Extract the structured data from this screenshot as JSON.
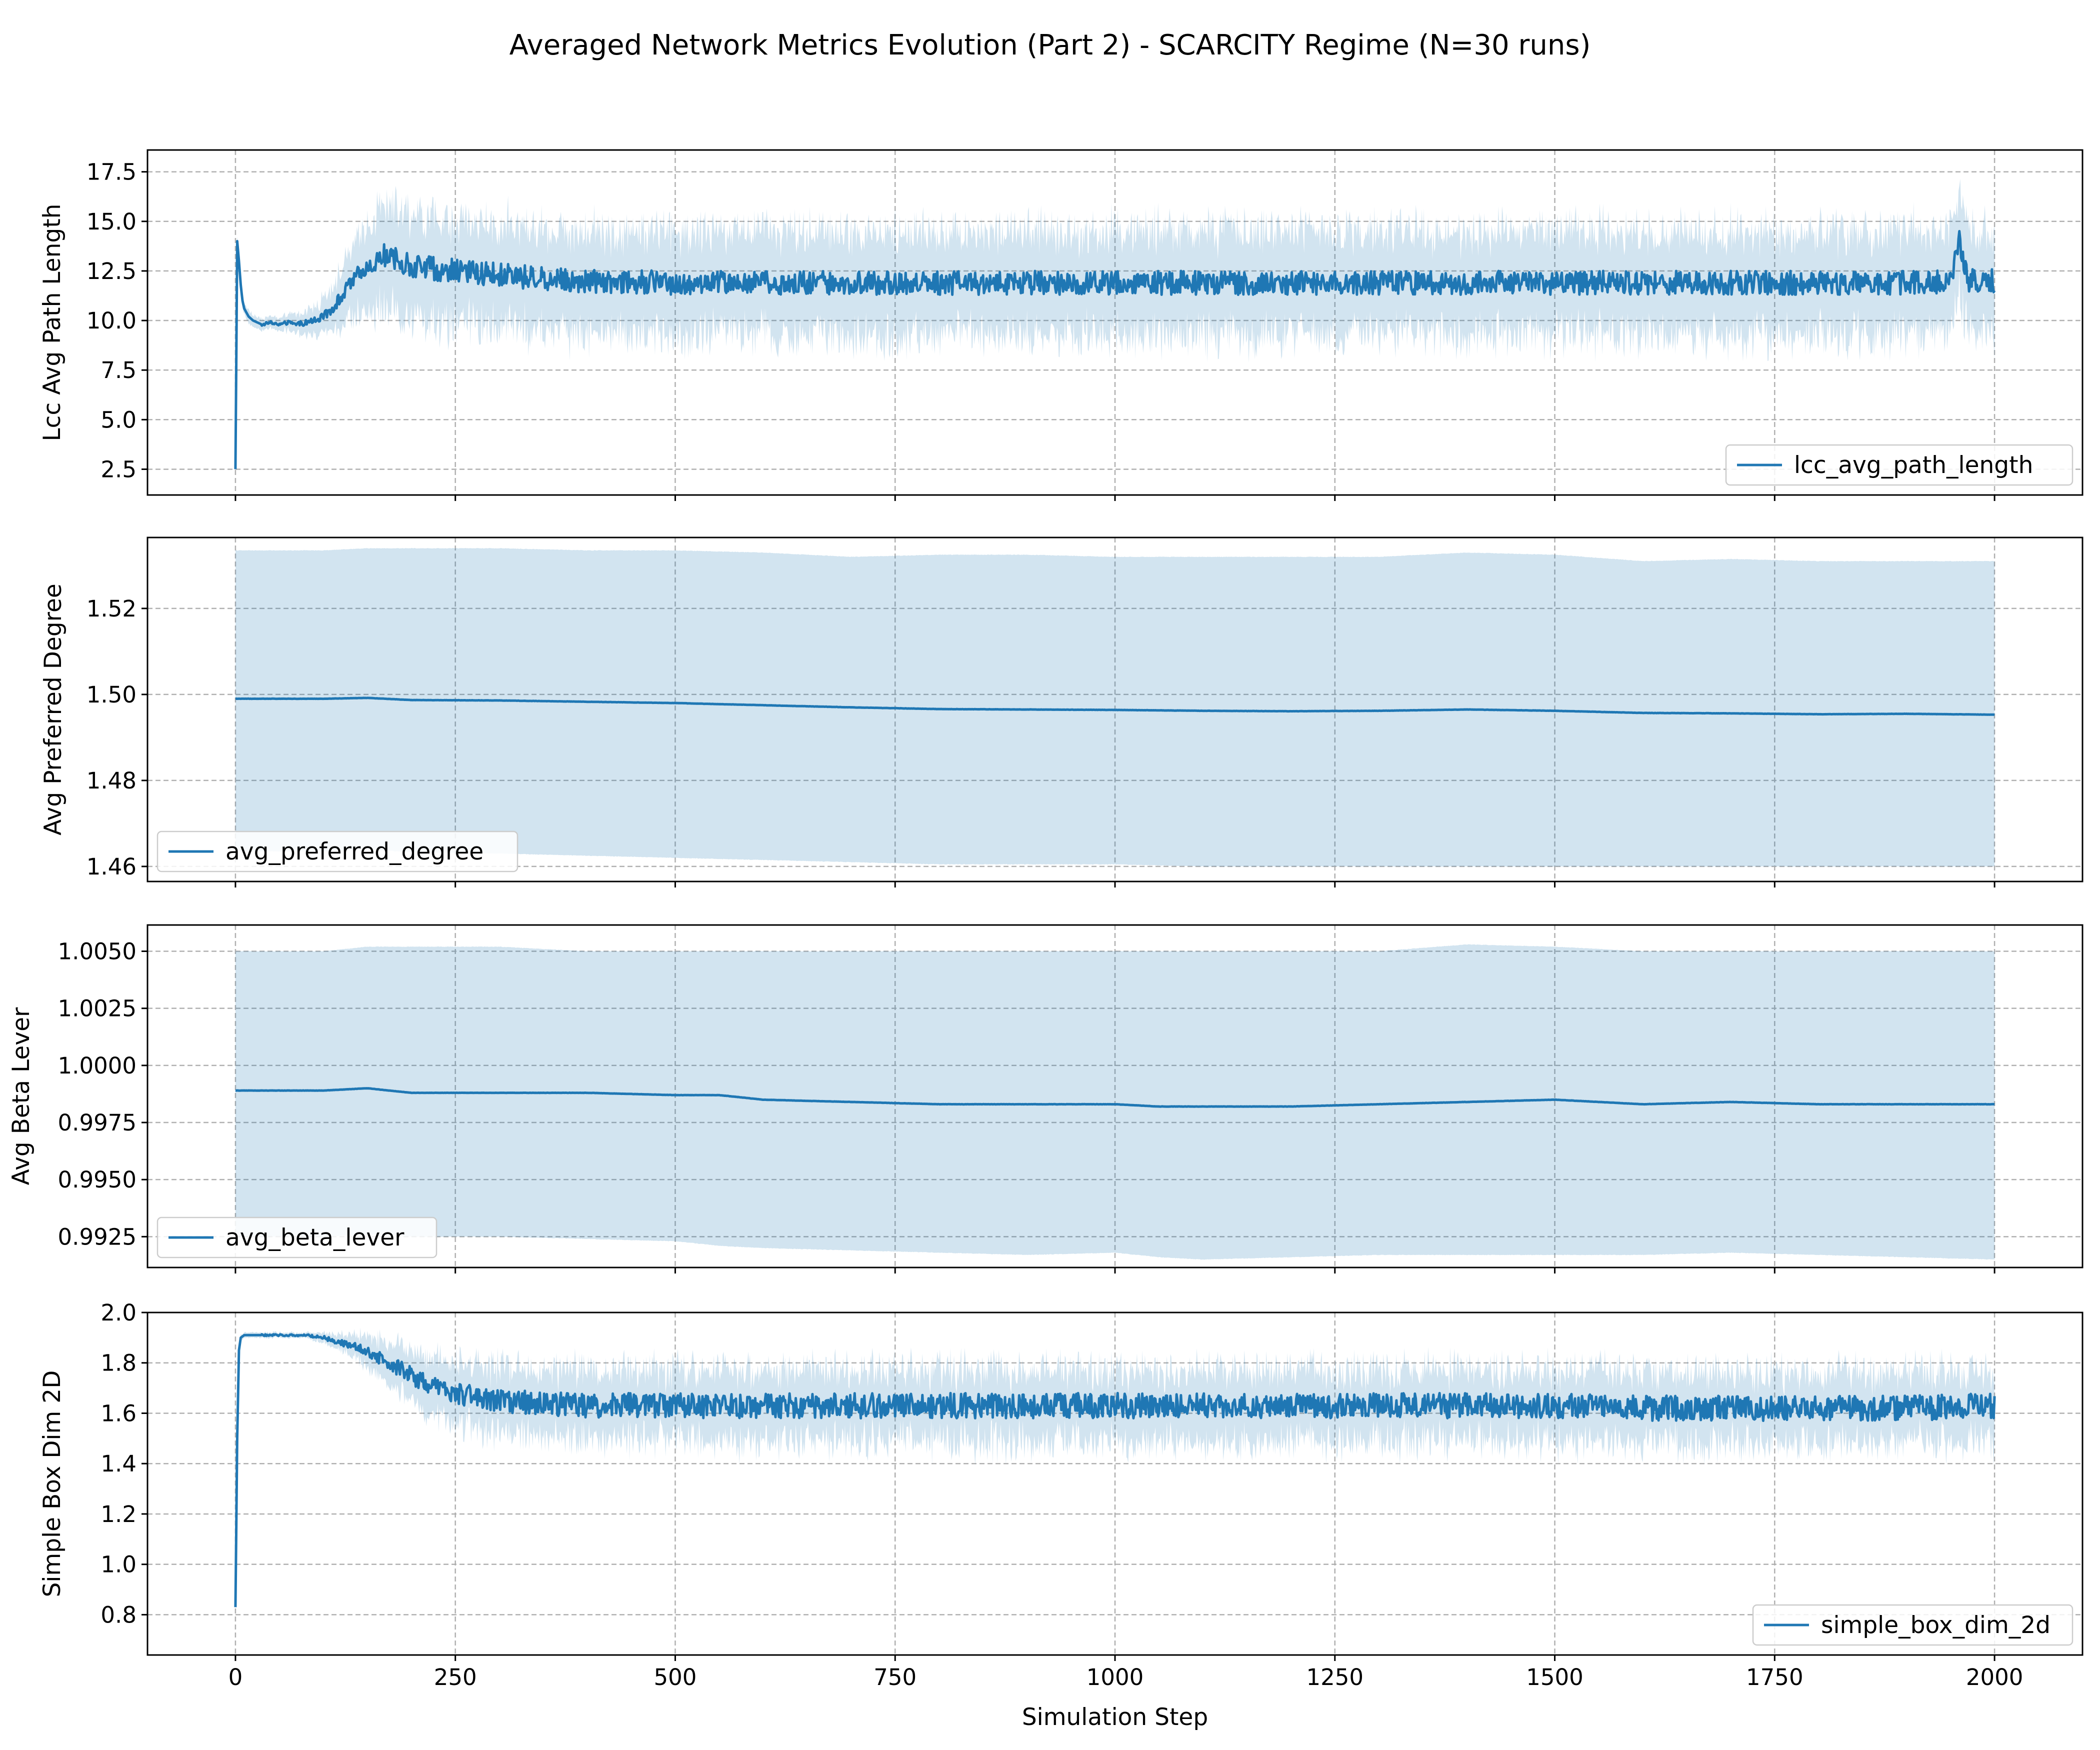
{
  "figure": {
    "title": "Averaged Network Metrics Evolution (Part 2) - SCARCITY Regime (N=30 runs)",
    "xlabel": "Simulation Step"
  },
  "colors": {
    "line": "#1f77b4",
    "band": "#1f77b4",
    "grid": "#b0b0b0"
  },
  "chart_data": [
    {
      "type": "line",
      "ylabel": "Lcc Avg Path Length",
      "legend": {
        "label": "lcc_avg_path_length",
        "location": "lower-right"
      },
      "xlim": [
        -100,
        2100
      ],
      "ylim": [
        1.2,
        18.6
      ],
      "xticks": [
        0,
        250,
        500,
        750,
        1000,
        1250,
        1500,
        1750,
        2000
      ],
      "yticks": [
        2.5,
        5.0,
        7.5,
        10.0,
        12.5,
        15.0,
        17.5
      ],
      "grid": true,
      "band": "mean ± std across runs",
      "series_x": [
        0,
        2,
        4,
        6,
        8,
        10,
        15,
        20,
        30,
        40,
        50,
        60,
        70,
        80,
        90,
        100,
        110,
        120,
        130,
        140,
        150,
        160,
        170,
        180,
        190,
        200,
        225,
        250,
        275,
        300,
        350,
        400,
        500,
        600,
        700,
        800,
        900,
        1000,
        1100,
        1200,
        1300,
        1400,
        1500,
        1600,
        1700,
        1800,
        1900,
        1950,
        1960,
        1970,
        2000
      ],
      "series_y": [
        2.5,
        14.0,
        13.0,
        11.8,
        11.0,
        10.6,
        10.2,
        10.0,
        9.8,
        9.9,
        9.8,
        9.9,
        9.8,
        9.9,
        10.0,
        10.2,
        10.6,
        11.2,
        11.8,
        12.3,
        12.7,
        13.0,
        13.3,
        13.1,
        12.9,
        12.8,
        12.6,
        12.5,
        12.4,
        12.3,
        12.1,
        12.0,
        11.9,
        11.9,
        11.9,
        11.9,
        11.9,
        11.9,
        11.9,
        11.9,
        11.9,
        11.9,
        11.9,
        11.9,
        11.9,
        11.9,
        11.9,
        12.0,
        14.1,
        12.0,
        12.0
      ],
      "band_half_width": [
        0,
        0.3,
        0.3,
        0.3,
        0.3,
        0.3,
        0.3,
        0.3,
        0.3,
        0.3,
        0.3,
        0.4,
        0.5,
        0.6,
        0.7,
        0.9,
        1.1,
        1.4,
        1.7,
        2.0,
        2.2,
        2.4,
        2.5,
        2.6,
        2.6,
        2.6,
        2.6,
        2.6,
        2.6,
        2.6,
        2.6,
        2.6,
        2.6,
        2.6,
        2.6,
        2.6,
        2.6,
        2.6,
        2.6,
        2.6,
        2.6,
        2.6,
        2.6,
        2.6,
        2.6,
        2.6,
        2.6,
        2.6,
        2.6,
        2.6,
        2.6
      ],
      "noise": 0.6
    },
    {
      "type": "line",
      "ylabel": "Avg Preferred Degree",
      "legend": {
        "label": "avg_preferred_degree",
        "location": "lower-left"
      },
      "xlim": [
        -100,
        2100
      ],
      "ylim": [
        1.4565,
        1.5365
      ],
      "xticks": [
        0,
        250,
        500,
        750,
        1000,
        1250,
        1500,
        1750,
        2000
      ],
      "yticks": [
        1.46,
        1.48,
        1.5,
        1.52
      ],
      "grid": true,
      "band": "mean ± std across runs",
      "series_x": [
        0,
        100,
        150,
        200,
        300,
        400,
        500,
        600,
        700,
        800,
        900,
        1000,
        1100,
        1200,
        1300,
        1400,
        1500,
        1600,
        1700,
        1800,
        1900,
        2000
      ],
      "series_y": [
        1.499,
        1.499,
        1.4992,
        1.4987,
        1.4986,
        1.4983,
        1.498,
        1.4975,
        1.497,
        1.4966,
        1.4965,
        1.4964,
        1.4962,
        1.4961,
        1.4962,
        1.4965,
        1.4962,
        1.4957,
        1.4956,
        1.4954,
        1.4955,
        1.4953
      ],
      "band_upper": [
        1.5335,
        1.5335,
        1.534,
        1.534,
        1.534,
        1.5335,
        1.5335,
        1.533,
        1.532,
        1.5325,
        1.5325,
        1.532,
        1.532,
        1.532,
        1.532,
        1.533,
        1.5325,
        1.531,
        1.5315,
        1.531,
        1.531,
        1.531
      ],
      "band_lower": [
        1.4635,
        1.4635,
        1.464,
        1.4633,
        1.463,
        1.4625,
        1.462,
        1.4615,
        1.461,
        1.4605,
        1.4605,
        1.4605,
        1.46,
        1.46,
        1.46,
        1.46,
        1.46,
        1.46,
        1.46,
        1.46,
        1.46,
        1.46
      ]
    },
    {
      "type": "line",
      "ylabel": "Avg Beta Lever",
      "legend": {
        "label": "avg_beta_lever",
        "location": "lower-left"
      },
      "xlim": [
        -100,
        2100
      ],
      "ylim": [
        0.99115,
        1.00615
      ],
      "xticks": [
        0,
        250,
        500,
        750,
        1000,
        1250,
        1500,
        1750,
        2000
      ],
      "yticks": [
        0.9925,
        0.995,
        0.9975,
        1.0,
        1.0025,
        1.005
      ],
      "grid": true,
      "band": "mean ± std across runs",
      "series_x": [
        0,
        100,
        150,
        200,
        300,
        400,
        500,
        550,
        600,
        700,
        800,
        900,
        1000,
        1050,
        1100,
        1200,
        1300,
        1400,
        1500,
        1600,
        1700,
        1800,
        1900,
        2000
      ],
      "series_y": [
        0.9989,
        0.9989,
        0.999,
        0.9988,
        0.9988,
        0.9988,
        0.9987,
        0.9987,
        0.9985,
        0.9984,
        0.9983,
        0.9983,
        0.9983,
        0.9982,
        0.9982,
        0.9982,
        0.9983,
        0.9984,
        0.9985,
        0.9983,
        0.9984,
        0.9983,
        0.9983,
        0.9983
      ],
      "band_upper": [
        1.005,
        1.005,
        1.0052,
        1.0052,
        1.0052,
        1.005,
        1.005,
        1.005,
        1.005,
        1.005,
        1.005,
        1.005,
        1.005,
        1.005,
        1.005,
        1.005,
        1.005,
        1.0053,
        1.0052,
        1.005,
        1.005,
        1.005,
        1.005,
        1.005
      ],
      "band_lower": [
        0.9925,
        0.9925,
        0.9926,
        0.9925,
        0.9925,
        0.9924,
        0.9923,
        0.9921,
        0.992,
        0.9919,
        0.9918,
        0.9917,
        0.9918,
        0.9916,
        0.9915,
        0.9916,
        0.9917,
        0.9917,
        0.9917,
        0.9917,
        0.9918,
        0.9917,
        0.9916,
        0.9915
      ]
    },
    {
      "type": "line",
      "ylabel": "Simple Box Dim 2D",
      "legend": {
        "label": "simple_box_dim_2d",
        "location": "lower-right"
      },
      "xlim": [
        -100,
        2100
      ],
      "ylim": [
        0.64,
        2.0
      ],
      "xticks": [
        0,
        250,
        500,
        750,
        1000,
        1250,
        1500,
        1750,
        2000
      ],
      "yticks": [
        0.8,
        1.0,
        1.2,
        1.4,
        1.6,
        1.8,
        2.0
      ],
      "grid": true,
      "band": "mean ± std across runs",
      "series_x": [
        0,
        2,
        4,
        6,
        10,
        20,
        50,
        80,
        100,
        120,
        140,
        160,
        180,
        200,
        220,
        250,
        300,
        350,
        400,
        500,
        600,
        700,
        800,
        900,
        1000,
        1100,
        1200,
        1300,
        1400,
        1500,
        1600,
        1700,
        1800,
        1900,
        2000
      ],
      "series_y": [
        0.83,
        1.5,
        1.85,
        1.9,
        1.91,
        1.91,
        1.91,
        1.91,
        1.9,
        1.88,
        1.86,
        1.83,
        1.79,
        1.75,
        1.71,
        1.68,
        1.65,
        1.64,
        1.63,
        1.63,
        1.63,
        1.63,
        1.63,
        1.63,
        1.63,
        1.63,
        1.63,
        1.63,
        1.63,
        1.63,
        1.62,
        1.62,
        1.62,
        1.62,
        1.63
      ],
      "band_half_width": [
        0,
        0.01,
        0.01,
        0.01,
        0.01,
        0.01,
        0.01,
        0.01,
        0.02,
        0.03,
        0.05,
        0.07,
        0.09,
        0.1,
        0.11,
        0.12,
        0.13,
        0.13,
        0.14,
        0.14,
        0.14,
        0.14,
        0.14,
        0.14,
        0.14,
        0.14,
        0.14,
        0.14,
        0.14,
        0.14,
        0.14,
        0.14,
        0.14,
        0.14,
        0.14
      ],
      "noise": 0.05
    }
  ]
}
